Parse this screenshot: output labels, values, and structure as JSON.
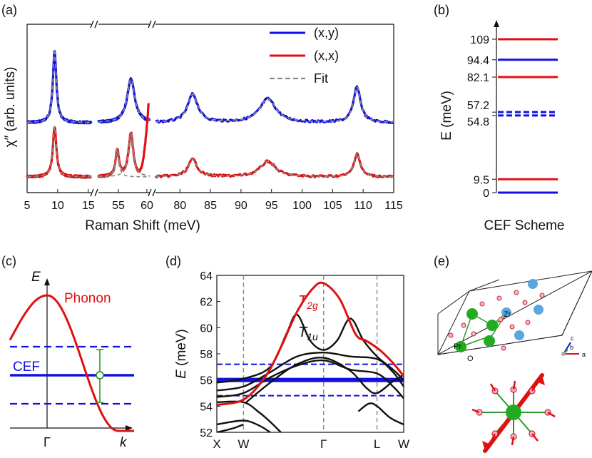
{
  "chart_data": [
    {
      "panel": "(a)",
      "type": "line",
      "xlabel": "Raman Shift (meV)",
      "ylabel": "χ″ (arb. units)",
      "x_segments": [
        {
          "range": [
            5,
            15.5
          ],
          "ticks": [
            5,
            10,
            15
          ]
        },
        {
          "range": [
            51.5,
            60.5
          ],
          "ticks": [
            55,
            60
          ]
        },
        {
          "range": [
            76,
            115
          ],
          "ticks": [
            80,
            85,
            90,
            95,
            100,
            105,
            110,
            115
          ]
        }
      ],
      "legend": [
        {
          "label": "(x,y)",
          "color": "#1010e0",
          "style": "solid"
        },
        {
          "label": "(x,x)",
          "color": "#e01010",
          "style": "solid"
        },
        {
          "label": "Fit",
          "color": "#888888",
          "style": "dashed"
        }
      ],
      "series": [
        {
          "name": "(x,y)",
          "color": "#1010e0",
          "offset": 1.0,
          "peaks": [
            {
              "center": 9.5,
              "amp": 1.55,
              "width": 0.35
            },
            {
              "center": 57.2,
              "amp": 0.95,
              "width": 0.8
            },
            {
              "center": 82.1,
              "amp": 0.62,
              "width": 1.0
            },
            {
              "center": 94.4,
              "amp": 0.52,
              "width": 1.6
            },
            {
              "center": 109,
              "amp": 0.78,
              "width": 0.7
            }
          ]
        },
        {
          "name": "(x,x)",
          "color": "#e01010",
          "offset": 0.0,
          "peaks": [
            {
              "center": 9.5,
              "amp": 1.1,
              "width": 0.35
            },
            {
              "center": 54.8,
              "amp": 0.58,
              "width": 0.35
            },
            {
              "center": 57.2,
              "amp": 0.95,
              "width": 0.5
            },
            {
              "center": 82.1,
              "amp": 0.38,
              "width": 0.9
            },
            {
              "center": 94.4,
              "amp": 0.34,
              "width": 1.5
            },
            {
              "center": 109,
              "amp": 0.52,
              "width": 0.6
            }
          ]
        }
      ]
    },
    {
      "panel": "(b)",
      "type": "level-scheme",
      "ylabel": "E (meV)",
      "xlabel": "CEF Scheme",
      "ylim": [
        0,
        115
      ],
      "levels": [
        {
          "energy": 0,
          "label": "0",
          "color": "#1010e0",
          "style": "solid"
        },
        {
          "energy": 9.5,
          "label": "9.5",
          "color": "#e01010",
          "style": "solid"
        },
        {
          "energy": 54.8,
          "label": "54.8",
          "color": "#1010e0",
          "style": "dashed"
        },
        {
          "energy": 57.2,
          "label": "57.2",
          "color": "#1010e0",
          "style": "dashed"
        },
        {
          "energy": 82.1,
          "label": "82.1",
          "color": "#e01010",
          "style": "solid"
        },
        {
          "energy": 94.4,
          "label": "94.4",
          "color": "#1010e0",
          "style": "solid"
        },
        {
          "energy": 109,
          "label": "109",
          "color": "#e01010",
          "style": "solid"
        }
      ]
    },
    {
      "panel": "(c)",
      "type": "schematic",
      "ylabel": "E",
      "xlabel": "k",
      "tick": "Γ",
      "phonon_label": "Phonon",
      "cef_label": "CEF"
    },
    {
      "panel": "(d)",
      "type": "line",
      "ylabel": "E (meV)",
      "ylim": [
        52,
        64
      ],
      "yticks": [
        52,
        54,
        56,
        58,
        60,
        62,
        64
      ],
      "kpoints": [
        "X",
        "W",
        "Γ",
        "L",
        "W"
      ],
      "annotations": [
        {
          "text": "T",
          "sub": "2g",
          "color": "#e01010"
        },
        {
          "text": "T",
          "sub": "1u",
          "color": "#111111"
        }
      ],
      "cef_levels": [
        {
          "energy": 57.2,
          "color": "#1010e0",
          "style": "dashed"
        },
        {
          "energy": 56.0,
          "color": "#1010e0",
          "style": "solid"
        },
        {
          "energy": 54.8,
          "color": "#1010e0",
          "style": "dashed"
        }
      ],
      "T2g_branch": [
        [
          0.0,
          54.1
        ],
        [
          0.5,
          54.5
        ],
        [
          0.9,
          56.2
        ],
        [
          1.2,
          58.5
        ],
        [
          1.5,
          61.2
        ],
        [
          1.8,
          63.0
        ],
        [
          2.0,
          63.4
        ],
        [
          2.3,
          62.2
        ],
        [
          2.6,
          59.5
        ],
        [
          2.8,
          59.0
        ],
        [
          3.05,
          58.3
        ],
        [
          3.3,
          57.3
        ],
        [
          3.5,
          56.3
        ]
      ],
      "black_branches": [
        [
          [
            0.0,
            55.8
          ],
          [
            0.5,
            56.1
          ],
          [
            1.0,
            57.0
          ],
          [
            1.3,
            59.5
          ],
          [
            1.5,
            61.0
          ],
          [
            1.75,
            59.0
          ],
          [
            2.0,
            58.3
          ],
          [
            2.25,
            59.0
          ],
          [
            2.5,
            60.7
          ],
          [
            2.75,
            59.0
          ],
          [
            3.0,
            57.8
          ],
          [
            3.3,
            56.8
          ],
          [
            3.5,
            56.0
          ]
        ],
        [
          [
            0.0,
            55.2
          ],
          [
            0.5,
            55.5
          ],
          [
            1.0,
            56.6
          ],
          [
            1.5,
            57.8
          ],
          [
            2.0,
            58.1
          ],
          [
            2.5,
            57.8
          ],
          [
            3.0,
            57.6
          ],
          [
            3.3,
            56.6
          ],
          [
            3.5,
            55.5
          ]
        ],
        [
          [
            0.0,
            54.7
          ],
          [
            0.5,
            55.0
          ],
          [
            1.0,
            56.2
          ],
          [
            1.5,
            57.1
          ],
          [
            2.0,
            57.5
          ],
          [
            2.5,
            56.8
          ],
          [
            3.0,
            56.5
          ],
          [
            3.3,
            55.5
          ],
          [
            3.5,
            54.6
          ]
        ],
        [
          [
            0.0,
            54.3
          ],
          [
            0.5,
            54.3
          ],
          [
            0.8,
            53.5
          ],
          [
            1.0,
            52.8
          ],
          [
            1.2,
            52.0
          ]
        ],
        [
          [
            0.0,
            52.6
          ],
          [
            0.5,
            52.9
          ],
          [
            0.8,
            52.5
          ],
          [
            1.0,
            52.0
          ]
        ],
        [
          [
            0.55,
            54.3
          ],
          [
            1.0,
            55.8
          ],
          [
            1.5,
            57.2
          ],
          [
            2.0,
            57.7
          ],
          [
            2.5,
            56.7
          ],
          [
            2.8,
            55.4
          ],
          [
            3.0,
            55.0
          ],
          [
            3.3,
            55.9
          ],
          [
            3.5,
            56.4
          ]
        ],
        [
          [
            0.0,
            52.0
          ],
          [
            0.3,
            52.3
          ],
          [
            0.5,
            52.6
          ]
        ],
        [
          [
            2.65,
            53.6
          ],
          [
            2.85,
            54.2
          ],
          [
            3.0,
            54.0
          ],
          [
            3.25,
            53.1
          ],
          [
            3.5,
            52.6
          ]
        ]
      ]
    },
    {
      "panel": "(e)",
      "type": "crystal-structure",
      "atoms": [
        "Zr",
        "Pr",
        "O"
      ],
      "axes": [
        "c",
        "b",
        "a"
      ]
    }
  ],
  "panel_labels": [
    "(a)",
    "(b)",
    "(c)",
    "(d)",
    "(e)"
  ],
  "colors": {
    "blue": "#1010e0",
    "red": "#e01010",
    "fit": "#888888",
    "black": "#111111"
  }
}
